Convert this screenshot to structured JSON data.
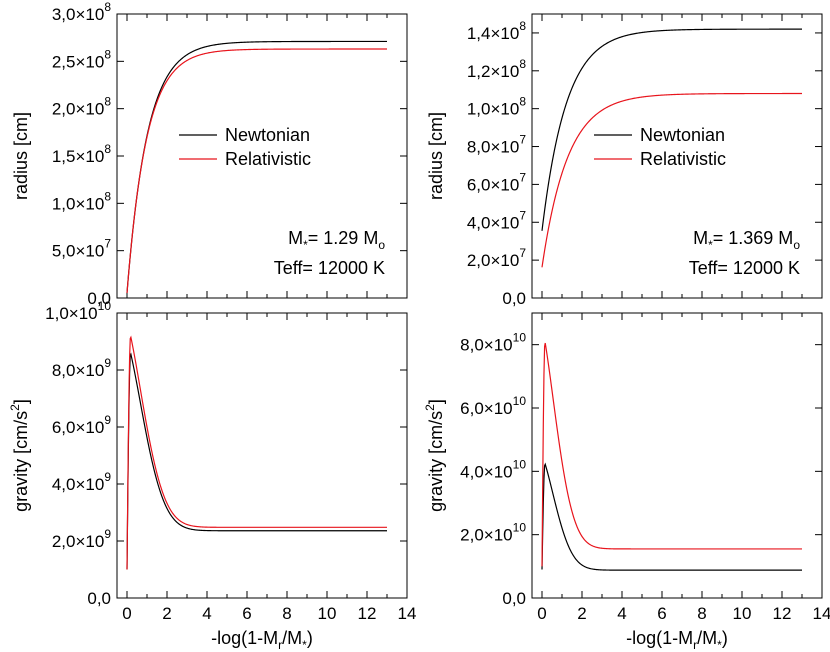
{
  "figure": {
    "shared_xlabel_left": "-log(1-M_r/M_*)",
    "shared_xlabel_right": "-log(1-M_r/M_*)"
  },
  "legend": {
    "newtonian": "Newtonian",
    "relativistic": "Relativistic"
  },
  "colors": {
    "newtonian": "#000000",
    "relativistic": "#e8141c",
    "frame": "#000000"
  },
  "chart_data": [
    {
      "id": "radius_left",
      "type": "line",
      "ylabel": "radius [cm]",
      "xlabel": "",
      "xlim": [
        -0.5,
        14
      ],
      "ylim": [
        0,
        300000000
      ],
      "x_ticks": [
        0,
        2,
        4,
        6,
        8,
        10,
        12,
        14
      ],
      "y_ticks": [
        {
          "value": 0,
          "mant": "0,0",
          "exp": ""
        },
        {
          "value": 50000000,
          "mant": "5,0×10",
          "exp": "7"
        },
        {
          "value": 100000000,
          "mant": "1,0×10",
          "exp": "8"
        },
        {
          "value": 150000000,
          "mant": "1,5×10",
          "exp": "8"
        },
        {
          "value": 200000000,
          "mant": "2,0×10",
          "exp": "8"
        },
        {
          "value": 250000000,
          "mant": "2,5×10",
          "exp": "8"
        },
        {
          "value": 300000000,
          "mant": "3,0×10",
          "exp": "8"
        }
      ],
      "show_x_tick_labels": false,
      "legend": {
        "show": true,
        "placement": "middle-right"
      },
      "annotation": {
        "mass": "M*= 1.29 Mo",
        "teff": "Teff= 12000 K"
      },
      "series": [
        {
          "name": "Newtonian",
          "color": "#000000",
          "kind": "radius",
          "params": {
            "Rmax": 271000000,
            "k": 0.98,
            "r0": 0.02
          }
        },
        {
          "name": "Relativistic",
          "color": "#e8141c",
          "kind": "radius",
          "params": {
            "Rmax": 263000000,
            "k": 1.02,
            "r0": 0.02
          }
        }
      ]
    },
    {
      "id": "radius_right",
      "type": "line",
      "ylabel": "radius [cm]",
      "xlabel": "",
      "xlim": [
        -0.5,
        14
      ],
      "ylim": [
        0,
        150000000
      ],
      "x_ticks": [
        0,
        2,
        4,
        6,
        8,
        10,
        12,
        14
      ],
      "y_ticks": [
        {
          "value": 0,
          "mant": "0,0",
          "exp": ""
        },
        {
          "value": 20000000,
          "mant": "2,0×10",
          "exp": "7"
        },
        {
          "value": 40000000,
          "mant": "4,0×10",
          "exp": "7"
        },
        {
          "value": 60000000,
          "mant": "6,0×10",
          "exp": "7"
        },
        {
          "value": 80000000,
          "mant": "8,0×10",
          "exp": "7"
        },
        {
          "value": 100000000,
          "mant": "1,0×10",
          "exp": "8"
        },
        {
          "value": 120000000,
          "mant": "1,2×10",
          "exp": "8"
        },
        {
          "value": 140000000,
          "mant": "1,4×10",
          "exp": "8"
        }
      ],
      "show_x_tick_labels": false,
      "legend": {
        "show": true,
        "placement": "middle-right"
      },
      "annotation": {
        "mass": "M*= 1.369 Mo",
        "teff": "Teff= 12000 K"
      },
      "series": [
        {
          "name": "Newtonian",
          "color": "#000000",
          "kind": "radius",
          "params": {
            "Rmax": 142000000,
            "k": 0.82,
            "r0": 0.25
          }
        },
        {
          "name": "Relativistic",
          "color": "#e8141c",
          "kind": "radius",
          "params": {
            "Rmax": 108000000,
            "k": 0.78,
            "r0": 0.15
          }
        }
      ]
    },
    {
      "id": "gravity_left",
      "type": "line",
      "ylabel": "gravity [cm/s2]",
      "xlabel": "-log(1-M_r/M_*)",
      "xlim": [
        -0.5,
        14
      ],
      "ylim": [
        0,
        10000000000
      ],
      "x_ticks": [
        0,
        2,
        4,
        6,
        8,
        10,
        12,
        14
      ],
      "y_ticks": [
        {
          "value": 0,
          "mant": "0,0",
          "exp": ""
        },
        {
          "value": 2000000000,
          "mant": "2,0×10",
          "exp": "9"
        },
        {
          "value": 4000000000,
          "mant": "4,0×10",
          "exp": "9"
        },
        {
          "value": 6000000000,
          "mant": "6,0×10",
          "exp": "9"
        },
        {
          "value": 8000000000,
          "mant": "8,0×10",
          "exp": "9"
        },
        {
          "value": 10000000000,
          "mant": "1,0×10",
          "exp": "10"
        }
      ],
      "show_x_tick_labels": true,
      "legend": {
        "show": false
      },
      "series": [
        {
          "name": "Newtonian",
          "color": "#000000",
          "kind": "gravity",
          "params": {
            "g0": 1000000000,
            "peak": 8600000000,
            "xpeak": 0.18,
            "ginf": 2360000000,
            "tau": 1.25
          }
        },
        {
          "name": "Relativistic",
          "color": "#e8141c",
          "kind": "gravity",
          "params": {
            "g0": 1000000000,
            "peak": 9200000000,
            "xpeak": 0.18,
            "ginf": 2480000000,
            "tau": 1.25
          }
        }
      ]
    },
    {
      "id": "gravity_right",
      "type": "line",
      "ylabel": "gravity [cm/s2]",
      "xlabel": "-log(1-M_r/M_*)",
      "xlim": [
        -0.5,
        14
      ],
      "ylim": [
        0,
        90000000000
      ],
      "x_ticks": [
        0,
        2,
        4,
        6,
        8,
        10,
        12,
        14
      ],
      "y_ticks": [
        {
          "value": 0,
          "mant": "0,0",
          "exp": ""
        },
        {
          "value": 20000000000,
          "mant": "2,0×10",
          "exp": "10"
        },
        {
          "value": 40000000000,
          "mant": "4,0×10",
          "exp": "10"
        },
        {
          "value": 60000000000,
          "mant": "6,0×10",
          "exp": "10"
        },
        {
          "value": 80000000000,
          "mant": "8,0×10",
          "exp": "10"
        }
      ],
      "show_x_tick_labels": true,
      "legend": {
        "show": false
      },
      "series": [
        {
          "name": "Newtonian",
          "color": "#000000",
          "kind": "gravity",
          "params": {
            "g0": 9000000000,
            "peak": 42500000000,
            "xpeak": 0.15,
            "ginf": 8800000000,
            "tau": 1.0
          }
        },
        {
          "name": "Relativistic",
          "color": "#e8141c",
          "kind": "gravity",
          "params": {
            "g0": 10000000000,
            "peak": 81000000000,
            "xpeak": 0.15,
            "ginf": 15500000000,
            "tau": 1.05
          }
        }
      ]
    }
  ]
}
